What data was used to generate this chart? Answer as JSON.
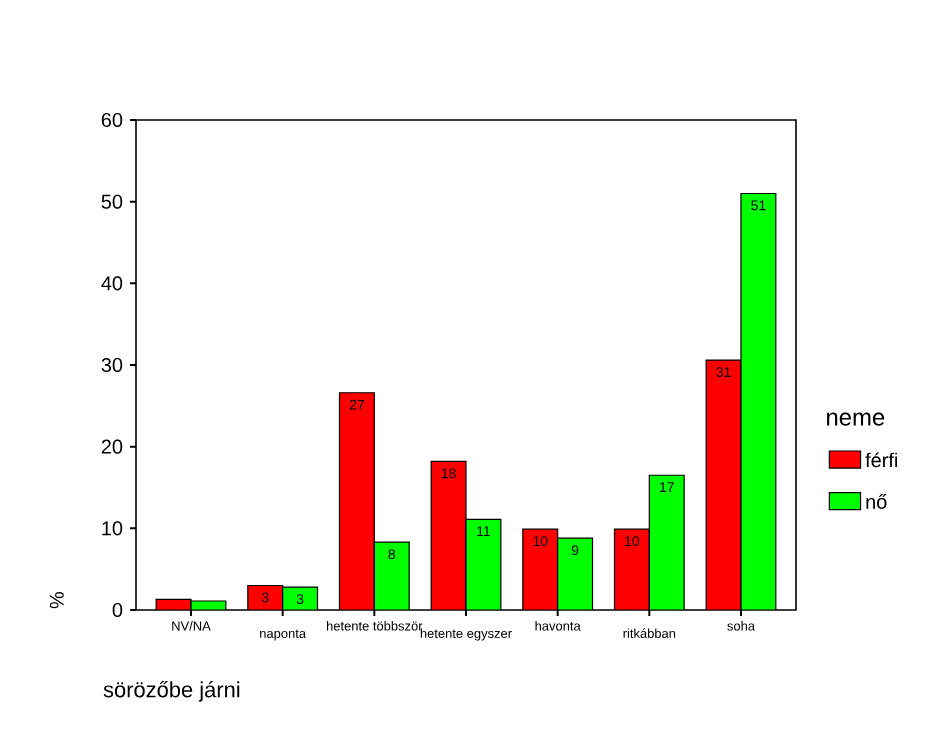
{
  "chart_data": {
    "type": "bar",
    "xlabel": "sörözőbe járni",
    "ylabel": "%",
    "legend_title": "neme",
    "legend": "right",
    "grid": false,
    "categories": [
      "NV/NA",
      "naponta",
      "hetente többször",
      "hetente egyszer",
      "havonta",
      "ritkábban",
      "soha"
    ],
    "ylim": [
      0,
      60
    ],
    "yticks": [
      0,
      10,
      20,
      30,
      40,
      50,
      60
    ],
    "series": [
      {
        "name": "férfi",
        "color": "#ff0000",
        "values": [
          1.3,
          3,
          26.6,
          18.2,
          9.9,
          9.9,
          30.6
        ],
        "value_labels": [
          null,
          "3",
          "27",
          "18",
          "10",
          "10",
          "31"
        ]
      },
      {
        "name": "nő",
        "color": "#00ff00",
        "values": [
          1.1,
          2.8,
          8.3,
          11.1,
          8.8,
          16.5,
          51
        ],
        "value_labels": [
          null,
          "3",
          "8",
          "11",
          "9",
          "17",
          "51"
        ]
      }
    ]
  }
}
